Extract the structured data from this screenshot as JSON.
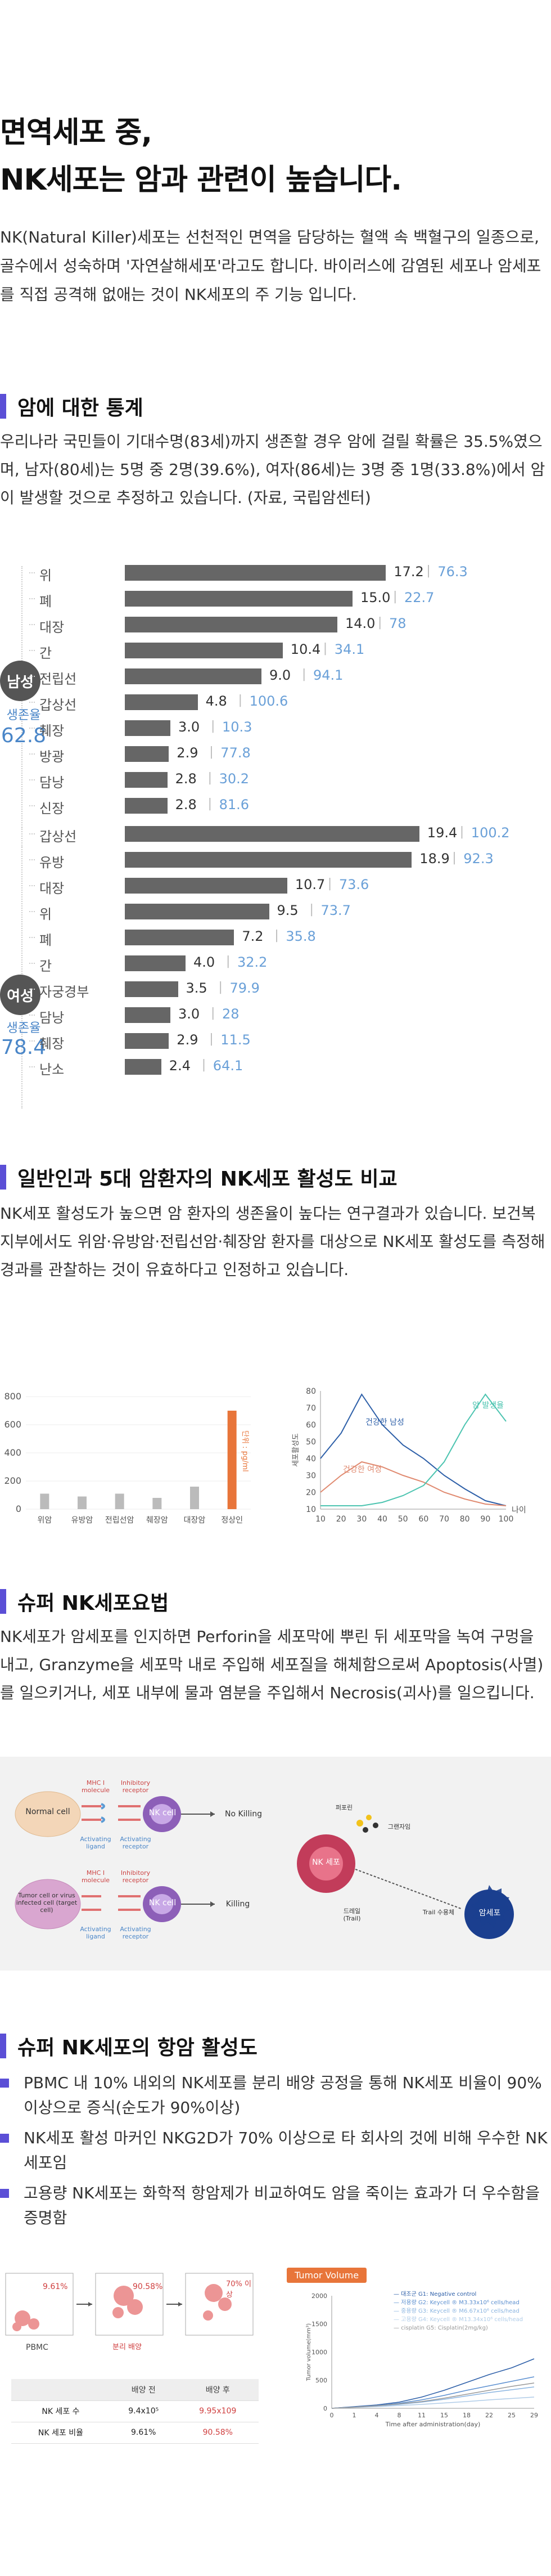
{
  "hero": {
    "title": "면역세포 중,\nNK세포는 암과 관련이 높습니다."
  },
  "intro": {
    "text": "NK(Natural Killer)세포는 선천적인 면역을 담당하는 혈액 속 백혈구의 일종으로, 골수에서 성숙하며 '자연살해세포'라고도 합니다. 바이러스에 감염된 세포나 암세포를 직접 공격해 없애는 것이 NK세포의 주 기능 입니다."
  },
  "section1": {
    "title": "암에 대한 통계",
    "text": "우리나라 국민들이 기대수명(83세)까지 생존할 경우 암에 걸릴 확률은 35.5%였으며, 남자(80세)는 5명 중 2명(39.6%), 여자(86세)는 3명 중 1명(33.8%)에서 암이 발생할 것으로 추정하고 있습니다. (자료, 국립암센터)"
  },
  "chart_data": [
    {
      "type": "bar",
      "group": "남성",
      "survival_label": "생존율",
      "survival_value": "62.8",
      "categories": [
        "위",
        "폐",
        "대장",
        "간",
        "전립선",
        "갑상선",
        "췌장",
        "방광",
        "담낭",
        "신장"
      ],
      "values": [
        17.2,
        15.0,
        14.0,
        10.4,
        9.0,
        4.8,
        3.0,
        2.9,
        2.8,
        2.8
      ],
      "survival": [
        76.3,
        22.7,
        78.0,
        34.1,
        94.1,
        100.6,
        10.3,
        77.8,
        30.2,
        81.6
      ]
    },
    {
      "type": "bar",
      "group": "여성",
      "survival_label": "생존율",
      "survival_value": "78.4",
      "categories": [
        "갑상선",
        "유방",
        "대장",
        "위",
        "폐",
        "간",
        "자궁경부",
        "담낭",
        "췌장",
        "난소"
      ],
      "values": [
        19.4,
        18.9,
        10.7,
        9.5,
        7.2,
        4.0,
        3.5,
        3.0,
        2.9,
        2.4
      ],
      "survival": [
        100.2,
        92.3,
        73.6,
        73.7,
        35.8,
        32.2,
        79.9,
        28.0,
        11.5,
        64.1
      ]
    },
    {
      "type": "bar",
      "categories": [
        "위암",
        "유방암",
        "전립선암",
        "췌장암",
        "대장암",
        "정상인"
      ],
      "values": [
        110,
        90,
        110,
        80,
        160,
        700
      ],
      "ylim": [
        0,
        800
      ],
      "yticks": [
        "0",
        "200",
        "400",
        "600",
        "800"
      ],
      "ylabel": "단위 : pg/ml"
    },
    {
      "type": "line",
      "x": [
        10,
        20,
        30,
        40,
        50,
        60,
        70,
        80,
        90,
        100
      ],
      "xticks": [
        "10",
        "20",
        "30",
        "40",
        "50",
        "60",
        "70",
        "80",
        "90",
        "100"
      ],
      "yticks": [
        "10",
        "20",
        "30",
        "40",
        "50",
        "60",
        "70",
        "80"
      ],
      "ylim": [
        10,
        80
      ],
      "ylabel": "세포활성도",
      "xlabel": "나이",
      "series": [
        {
          "name": "건강한 남성",
          "values": [
            40,
            55,
            78,
            60,
            48,
            40,
            30,
            22,
            15,
            12
          ]
        },
        {
          "name": "건강한 여성",
          "values": [
            20,
            30,
            38,
            35,
            30,
            26,
            20,
            16,
            13,
            12
          ]
        },
        {
          "name": "암 발생율",
          "values": [
            12,
            12,
            12,
            14,
            18,
            24,
            38,
            60,
            78,
            62
          ]
        }
      ]
    }
  ],
  "section2": {
    "title": "일반인과 5대 암환자의 NK세포 활성도 비교",
    "text": "NK세포 활성도가 높으면 암 환자의 생존율이 높다는 연구결과가 있습니다. 보건복지부에서도 위암·유방암·전립선암·췌장암 환자를 대상으로 NK세포 활성도를 측정해 경과를 관찰하는 것이 유효하다고 인정하고 있습니다."
  },
  "section3": {
    "title": "슈퍼 NK세포요법",
    "text": "NK세포가 암세포를 인지하면 Perforin을 세포막에 뿌린 뒤 세포막을 녹여 구멍을 내고, Granzyme을 세포막 내로 주입해 세포질을 해체함으로써 Apoptosis(사멸)를 일으키거나, 세포 내부에 물과 염분을 주입해서 Necrosis(괴사)를 일으킵니다."
  },
  "diagram": {
    "normal_cell": "Normal cell",
    "tumor_cell": "Tumor cell or virus infected cell (target cell)",
    "nk_cell": "NK cell",
    "mhc": "MHC I molecule",
    "inhibitory": "Inhibitory receptor",
    "activating_ligand": "Activating ligand",
    "activating_receptor": "Activating receptor",
    "no_killing": "No Killing",
    "killing": "Killing",
    "perforin": "퍼포린",
    "granzyme": "그랜자임",
    "nk_cell_kr": "NK 세포",
    "tnf": "드레일 (Trail)",
    "fas": "Trail 수용체",
    "cancer_cell": "암세포"
  },
  "section4": {
    "title": "슈퍼 NK세포의 항암 활성도",
    "bullets": [
      "PBMC 내 10% 내외의 NK세포를 분리 배양 공정을 통해 NK세포 비율이 90%이상으로 증식(순도가 90%이상)",
      "NK세포 활성 마커인 NKG2D가 70% 이상으로 타 회사의 것에 비해 우수한 NK세포임",
      "고용량 NK세포는 화학적 항암제가 비교하여도 암을 죽이는 효과가 더 우수함을 증명함"
    ]
  },
  "flow": {
    "pct1": "9.61%",
    "pct2": "90.58%",
    "pct3": "70% 이상",
    "pbmc": "PBMC",
    "caption": "분리 배양",
    "table_headers": [
      "",
      "배양 전",
      "배양 후"
    ],
    "table_rows": [
      [
        "NK 세포 수",
        "9.4x10⁵",
        "9.95x109"
      ],
      [
        "NK 세포 비율",
        "9.61%",
        "90.58%"
      ]
    ]
  },
  "tumor": {
    "badge": "Tumor Volume",
    "ylabel": "Tumor volume(mm³)",
    "xlabel": "Time after administration(day)",
    "yticks": [
      "0",
      "500",
      "1000",
      "1500",
      "2000"
    ],
    "xticks": [
      "0",
      "1",
      "4",
      "8",
      "11",
      "15",
      "18",
      "22",
      "25",
      "29"
    ],
    "legend": [
      "G1: Negative control",
      "G2: Keycell ® M3.33x10⁶ cells/head",
      "G3: Keycell ® M6.67x10⁶ cells/head",
      "G4: Keycell ® M13.34x10⁶ cells/head",
      "G5: Cisplatin(2mg/kg)"
    ],
    "legend_short": [
      "대조군",
      "저용량",
      "중용량",
      "고용량",
      "cisplatin"
    ]
  }
}
